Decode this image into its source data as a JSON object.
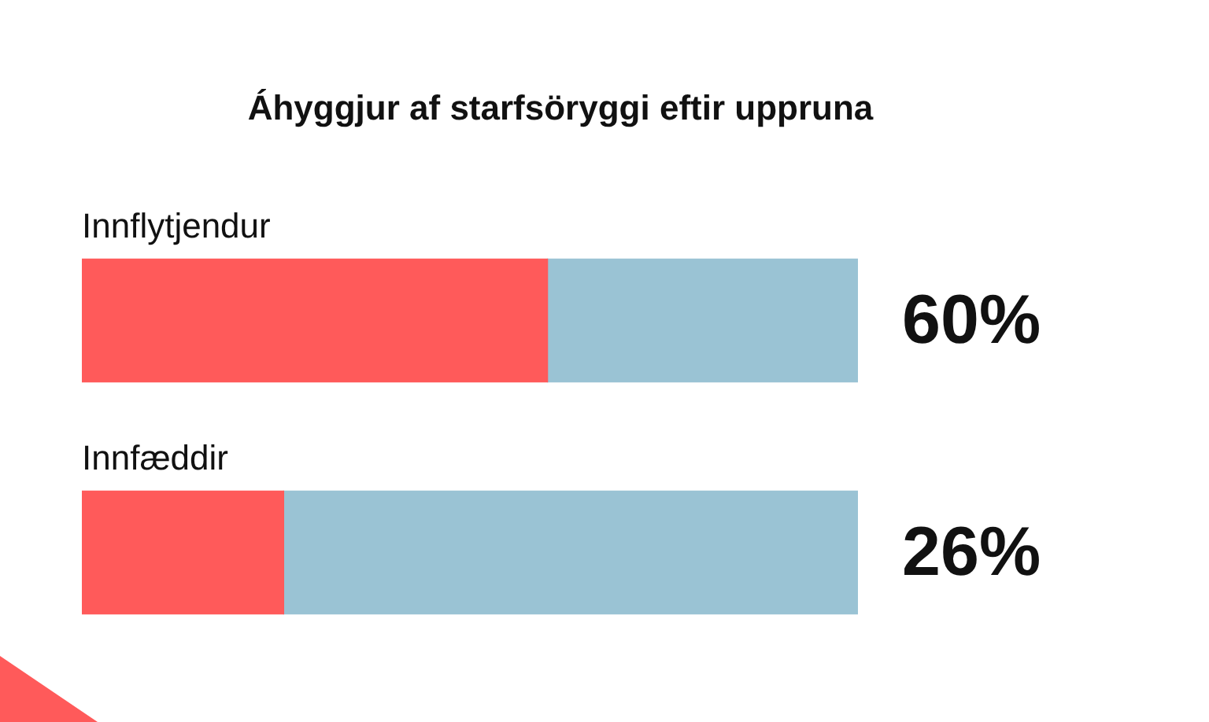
{
  "chart_data": {
    "type": "bar",
    "title": "Áhyggjur af starfsöryggi eftir uppruna",
    "categories": [
      "Innflytjendur",
      "Innfæddir"
    ],
    "orientation": "horizontal",
    "stacked": true,
    "series": [
      {
        "color": "#ff5a5a",
        "values": [
          60,
          26
        ],
        "value_labels": [
          "60%",
          "26%"
        ]
      },
      {
        "color": "#9ac3d4",
        "values": [
          40,
          74
        ]
      }
    ]
  }
}
